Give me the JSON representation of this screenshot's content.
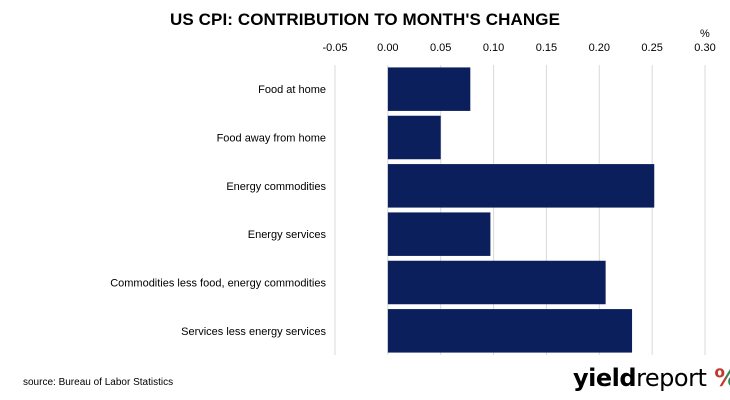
{
  "chart_data": {
    "type": "bar",
    "orientation": "horizontal",
    "title": "US CPI: CONTRIBUTION TO MONTH'S CHANGE",
    "unit": "%",
    "categories": [
      "Food at home",
      "Food away from home",
      "Energy commodities",
      "Energy services",
      "Commodities less food, energy commodities",
      "Services less energy services"
    ],
    "values": [
      0.078,
      0.05,
      0.252,
      0.097,
      0.206,
      0.231
    ],
    "xlim": [
      -0.05,
      0.3
    ],
    "x_ticks": [
      "-0.05",
      "0.00",
      "0.05",
      "0.10",
      "0.15",
      "0.20",
      "0.25",
      "0.30"
    ],
    "x_tick_values": [
      -0.05,
      0.0,
      0.05,
      0.1,
      0.15,
      0.2,
      0.25,
      0.3
    ],
    "grid": "vertical",
    "axis_position": "top",
    "bar_color": "#0b1f5c",
    "grid_color": "#d9d9d9"
  },
  "footer": {
    "source": "source: Bureau of Labor Statistics",
    "logo_bold": "yield",
    "logo_light": "report",
    "logo_symbol": "%"
  }
}
